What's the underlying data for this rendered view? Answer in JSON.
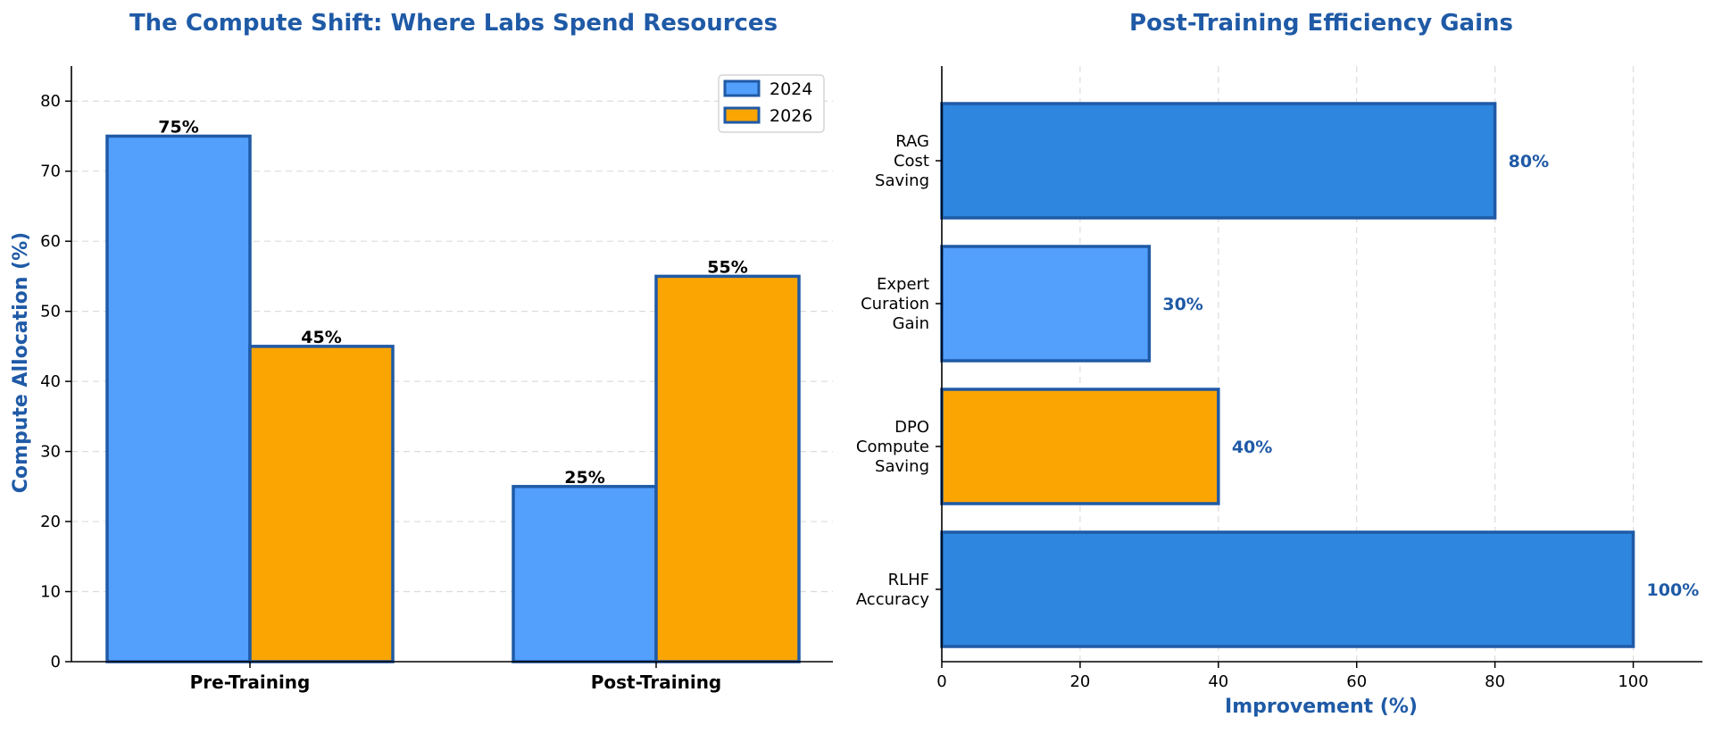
{
  "chart_data": [
    {
      "type": "bar",
      "title": "The Compute Shift: Where Labs Spend Resources",
      "xlabel": "",
      "ylabel": "Compute Allocation (%)",
      "ylim": [
        0,
        85
      ],
      "yticks": [
        "0",
        "10",
        "20",
        "30",
        "40",
        "50",
        "60",
        "70",
        "80"
      ],
      "grid": "horizontal dashed",
      "legend_position": "top-right",
      "categories": [
        "Pre-Training",
        "Post-Training"
      ],
      "series": [
        {
          "name": "2024",
          "values": [
            75,
            25
          ],
          "labels": [
            "75%",
            "25%"
          ],
          "color": "#529ffc"
        },
        {
          "name": "2026",
          "values": [
            45,
            55
          ],
          "labels": [
            "45%",
            "55%"
          ],
          "color": "#fba503"
        }
      ],
      "edge_color": "#1f5aa6"
    },
    {
      "type": "barh",
      "title": "Post-Training Efficiency Gains",
      "xlabel": "Improvement (%)",
      "ylabel": "",
      "xlim": [
        0,
        110
      ],
      "xticks": [
        "0",
        "20",
        "40",
        "60",
        "80",
        "100"
      ],
      "grid": "vertical dashed",
      "categories": [
        {
          "lines": [
            "RLHF",
            "Accuracy"
          ],
          "value": 100,
          "label": "100%",
          "color": "#2e86de"
        },
        {
          "lines": [
            "DPO",
            "Compute",
            "Saving"
          ],
          "value": 40,
          "label": "40%",
          "color": "#fba503"
        },
        {
          "lines": [
            "Expert",
            "Curation",
            "Gain"
          ],
          "value": 30,
          "label": "30%",
          "color": "#529ffc"
        },
        {
          "lines": [
            "RAG",
            "Cost",
            "Saving"
          ],
          "value": 80,
          "label": "80%",
          "color": "#2e86de"
        }
      ],
      "edge_color": "#1f5aa6"
    }
  ]
}
